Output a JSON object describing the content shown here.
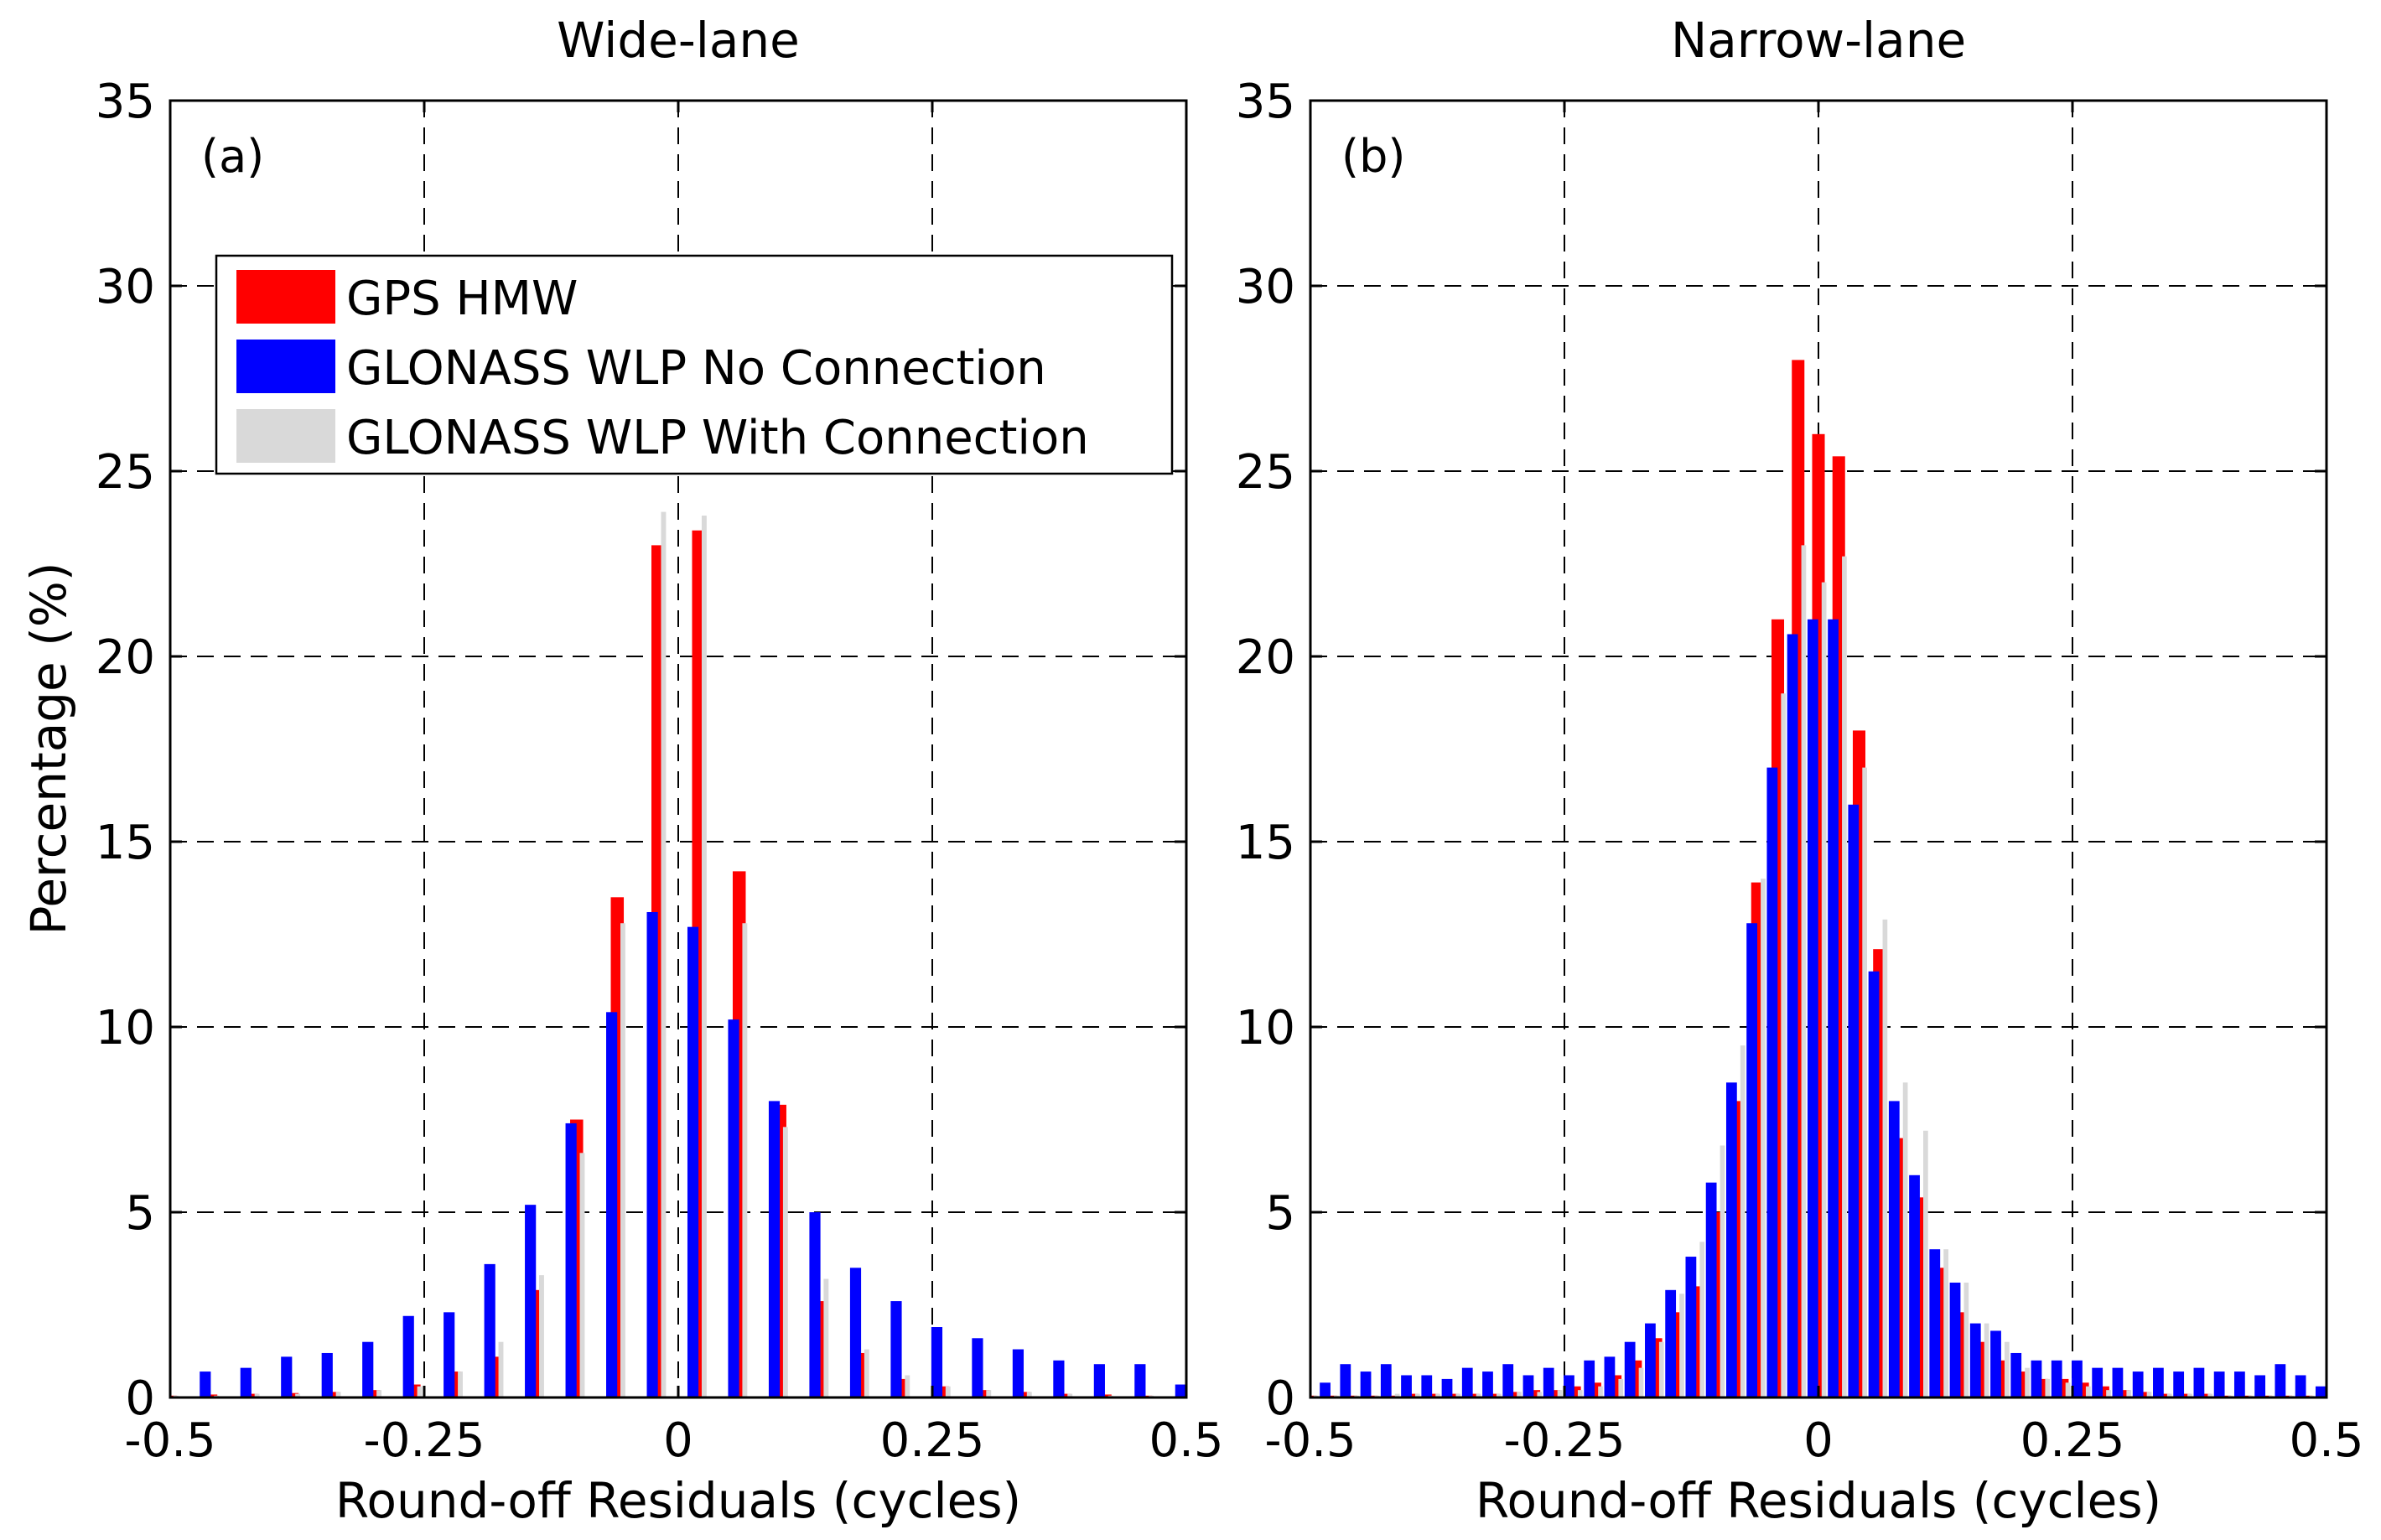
{
  "figure": {
    "ylabel": "Percentage (%)"
  },
  "legend": {
    "entries": [
      {
        "label": "GPS HMW",
        "color": "#ff0000"
      },
      {
        "label": "GLONASS WLP No Connection",
        "color": "#0000ff"
      },
      {
        "label": "GLONASS WLP With Connection",
        "color": "#d9d9d9"
      }
    ]
  },
  "chart_data": [
    {
      "type": "bar",
      "title": "Wide-lane",
      "panel_label": "(a)",
      "xlabel": "Round-off Residuals (cycles)",
      "ylabel": "Percentage (%)",
      "xlim": [
        -0.5,
        0.5
      ],
      "ylim": [
        0,
        35
      ],
      "xticks": [
        -0.5,
        -0.25,
        0,
        0.25,
        0.5
      ],
      "xtick_labels": [
        "-0.5",
        "-0.25",
        "0",
        "0.25",
        "0.5"
      ],
      "yticks": [
        0,
        5,
        10,
        15,
        20,
        25,
        30,
        35
      ],
      "ytick_labels": [
        "0",
        "5",
        "10",
        "15",
        "20",
        "25",
        "30",
        "35"
      ],
      "grid": true,
      "legend_position": "upper-left",
      "bin_centers": [
        -0.5,
        -0.46,
        -0.42,
        -0.38,
        -0.34,
        -0.3,
        -0.26,
        -0.22,
        -0.18,
        -0.14,
        -0.1,
        -0.06,
        -0.02,
        0.02,
        0.06,
        0.1,
        0.14,
        0.18,
        0.22,
        0.26,
        0.3,
        0.34,
        0.38,
        0.42,
        0.46,
        0.5
      ],
      "series": [
        {
          "name": "GPS HMW",
          "color": "#ff0000",
          "values": [
            0.05,
            0.08,
            0.1,
            0.12,
            0.15,
            0.2,
            0.35,
            0.7,
            1.1,
            2.9,
            7.5,
            13.5,
            23.0,
            23.4,
            14.2,
            7.9,
            2.6,
            1.2,
            0.5,
            0.3,
            0.2,
            0.15,
            0.1,
            0.08,
            0.05,
            0.05
          ]
        },
        {
          "name": "GLONASS WLP No Connection",
          "color": "#0000ff",
          "values": [
            0.3,
            0.7,
            0.8,
            1.1,
            1.2,
            1.5,
            2.2,
            2.3,
            3.6,
            5.2,
            7.4,
            10.4,
            13.1,
            12.7,
            10.2,
            8.0,
            5.0,
            3.5,
            2.6,
            1.9,
            1.6,
            1.3,
            1.0,
            0.9,
            0.9,
            0.35
          ]
        },
        {
          "name": "GLONASS WLP With Connection",
          "color": "#d9d9d9",
          "values": [
            0.05,
            0.05,
            0.1,
            0.1,
            0.15,
            0.2,
            0.3,
            0.7,
            1.5,
            3.3,
            6.6,
            12.8,
            23.9,
            23.8,
            12.8,
            7.3,
            3.2,
            1.3,
            0.6,
            0.3,
            0.2,
            0.15,
            0.1,
            0.05,
            0.05,
            0.05
          ]
        }
      ]
    },
    {
      "type": "bar",
      "title": "Narrow-lane",
      "panel_label": "(b)",
      "xlabel": "Round-off Residuals (cycles)",
      "ylabel": "",
      "xlim": [
        -0.5,
        0.5
      ],
      "ylim": [
        0,
        35
      ],
      "xticks": [
        -0.5,
        -0.25,
        0,
        0.25,
        0.5
      ],
      "xtick_labels": [
        "-0.5",
        "-0.25",
        "0",
        "0.25",
        "0.5"
      ],
      "yticks": [
        0,
        5,
        10,
        15,
        20,
        25,
        30,
        35
      ],
      "ytick_labels": [
        "0",
        "5",
        "10",
        "15",
        "20",
        "25",
        "30",
        "35"
      ],
      "grid": true,
      "bin_centers": [
        -0.5,
        -0.48,
        -0.46,
        -0.44,
        -0.42,
        -0.4,
        -0.38,
        -0.36,
        -0.34,
        -0.32,
        -0.3,
        -0.28,
        -0.26,
        -0.24,
        -0.22,
        -0.2,
        -0.18,
        -0.16,
        -0.14,
        -0.12,
        -0.1,
        -0.08,
        -0.06,
        -0.04,
        -0.02,
        0.0,
        0.02,
        0.04,
        0.06,
        0.08,
        0.1,
        0.12,
        0.14,
        0.16,
        0.18,
        0.2,
        0.22,
        0.24,
        0.26,
        0.28,
        0.3,
        0.32,
        0.34,
        0.36,
        0.38,
        0.4,
        0.42,
        0.44,
        0.46,
        0.48,
        0.5
      ],
      "series": [
        {
          "name": "GPS HMW",
          "color": "#ff0000",
          "values": [
            0.05,
            0.05,
            0.05,
            0.05,
            0.05,
            0.1,
            0.1,
            0.1,
            0.1,
            0.1,
            0.15,
            0.2,
            0.2,
            0.3,
            0.4,
            0.6,
            1.0,
            1.6,
            2.3,
            3.0,
            5.0,
            8.0,
            13.9,
            21.0,
            28.0,
            26.0,
            25.4,
            18.0,
            12.1,
            7.0,
            5.4,
            3.5,
            2.3,
            1.5,
            1.0,
            0.7,
            0.5,
            0.5,
            0.4,
            0.3,
            0.2,
            0.15,
            0.1,
            0.1,
            0.1,
            0.05,
            0.05,
            0.05,
            0.05,
            0.05,
            0.05
          ]
        },
        {
          "name": "GLONASS WLP No Connection",
          "color": "#0000ff",
          "values": [
            0.4,
            0.4,
            0.9,
            0.7,
            0.9,
            0.6,
            0.6,
            0.5,
            0.8,
            0.7,
            0.9,
            0.6,
            0.8,
            0.6,
            1.0,
            1.1,
            1.5,
            2.0,
            2.9,
            3.8,
            5.8,
            8.5,
            12.8,
            17.0,
            20.6,
            21.0,
            21.0,
            16.0,
            11.5,
            8.0,
            6.0,
            4.0,
            3.1,
            2.0,
            1.8,
            1.2,
            1.0,
            1.0,
            1.0,
            0.8,
            0.8,
            0.7,
            0.8,
            0.7,
            0.8,
            0.7,
            0.7,
            0.6,
            0.9,
            0.6,
            0.3
          ]
        },
        {
          "name": "GLONASS WLP With Connection",
          "color": "#d9d9d9",
          "values": [
            0.05,
            0.05,
            0.05,
            0.05,
            0.1,
            0.1,
            0.1,
            0.1,
            0.1,
            0.1,
            0.15,
            0.15,
            0.2,
            0.2,
            0.3,
            0.5,
            0.8,
            1.5,
            2.8,
            4.2,
            6.8,
            9.5,
            14.0,
            19.0,
            23.0,
            22.0,
            22.7,
            17.0,
            12.9,
            8.5,
            7.2,
            4.0,
            3.1,
            2.0,
            1.5,
            0.8,
            0.5,
            0.4,
            0.3,
            0.2,
            0.2,
            0.15,
            0.1,
            0.1,
            0.1,
            0.05,
            0.05,
            0.05,
            0.05,
            0.05,
            0.05
          ]
        }
      ]
    }
  ]
}
